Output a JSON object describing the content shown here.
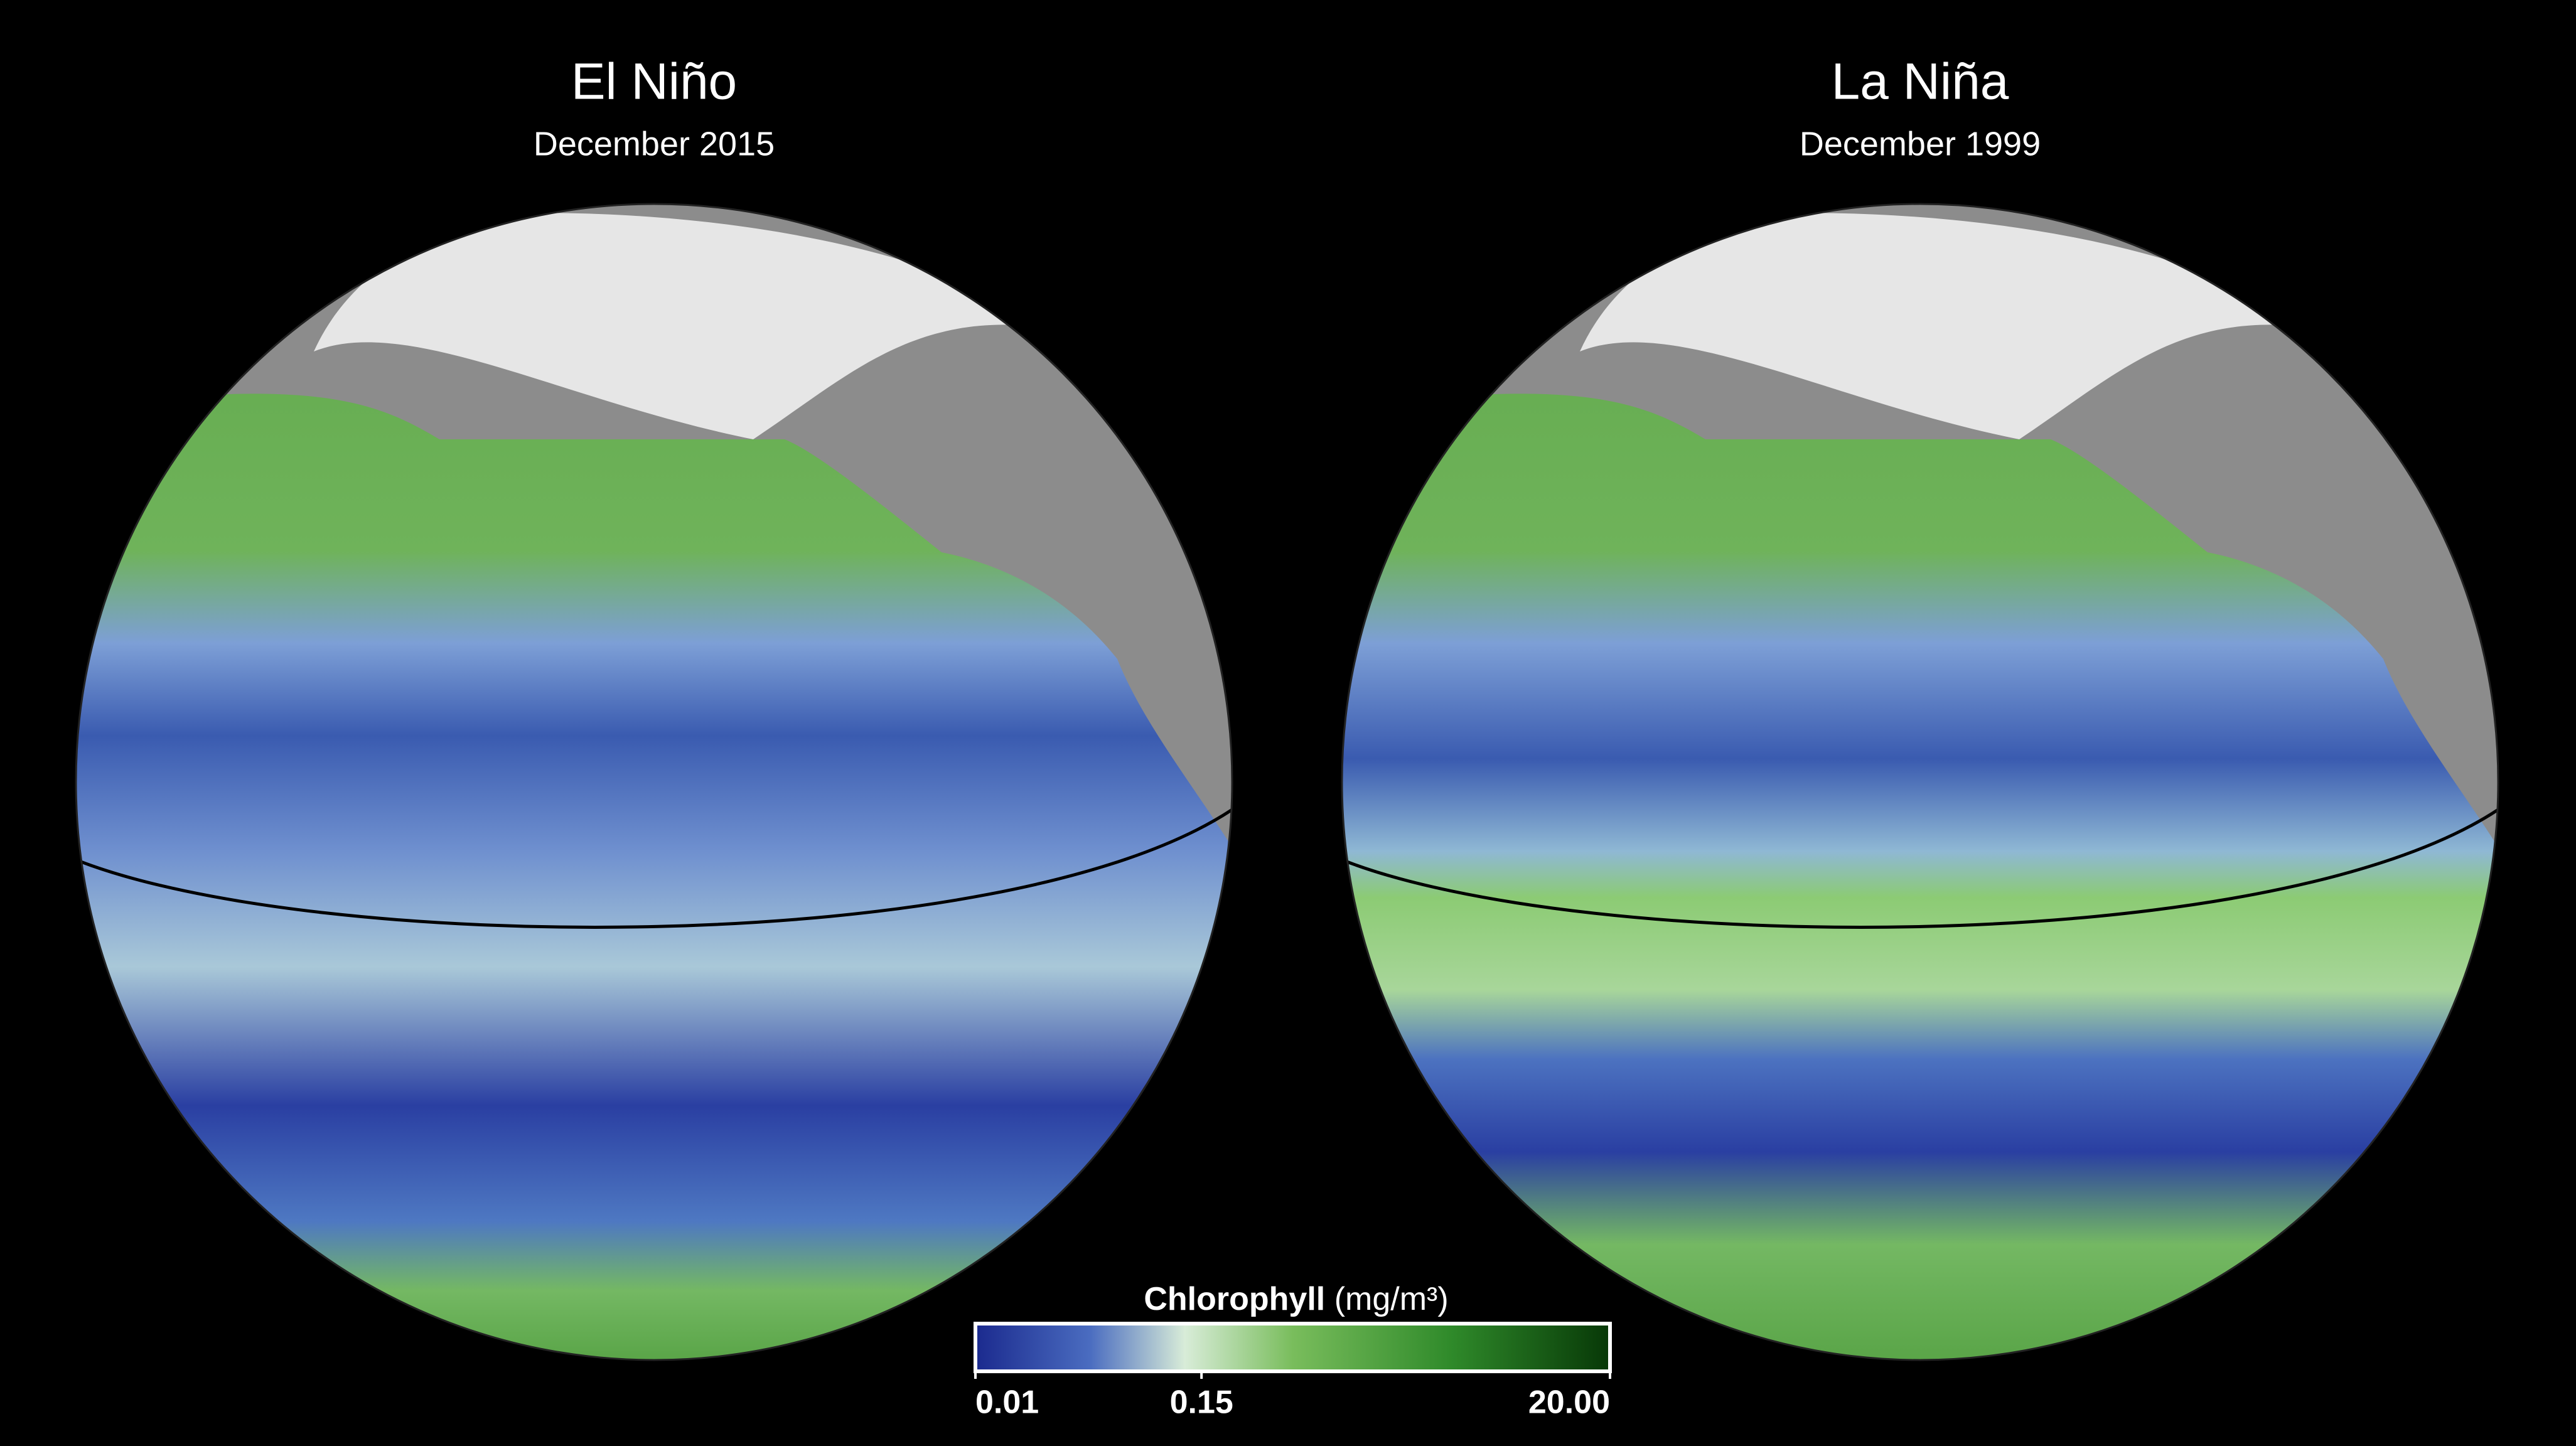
{
  "panels": [
    {
      "title": "El Niño",
      "subtitle": "December 2015"
    },
    {
      "title": "La Niña",
      "subtitle": "December 1999"
    }
  ],
  "colorbar": {
    "label": "Chlorophyll",
    "unit": "(mg/m³)",
    "scale": "log",
    "range": [
      0.01,
      20
    ],
    "ticks": [
      0.01,
      0.15,
      {
        "value": 20,
        "label": "20.00"
      }
    ]
  }
}
